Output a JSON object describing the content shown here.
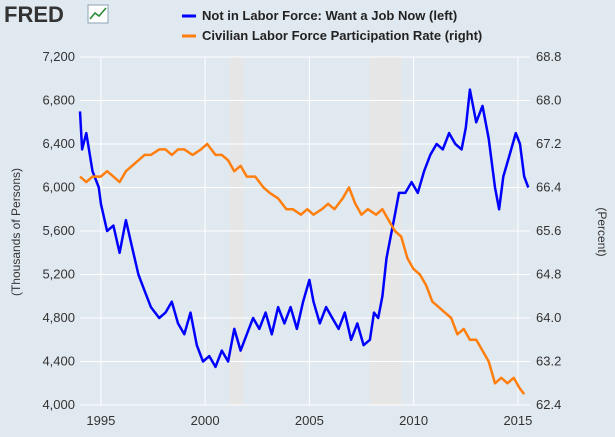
{
  "brand": {
    "logo": "FRED",
    "icon": "line-chart-icon"
  },
  "chart_data": {
    "type": "line",
    "title": "",
    "xlabel": "",
    "ylabel_left": "(Thousands of Persons)",
    "ylabel_right": "(Percent)",
    "x_ticks": [
      "1995",
      "2000",
      "2005",
      "2010",
      "2015"
    ],
    "y_left_ticks": [
      "4,000",
      "4,400",
      "4,800",
      "5,200",
      "5,600",
      "6,000",
      "6,400",
      "6,800",
      "7,200"
    ],
    "y_right_ticks": [
      "62.4",
      "63.2",
      "64.0",
      "64.8",
      "65.6",
      "66.4",
      "67.2",
      "68.0",
      "68.8"
    ],
    "ylim_left": [
      4000,
      7200
    ],
    "ylim_right": [
      62.4,
      68.8
    ],
    "xlim": [
      1994.0,
      2015.58
    ],
    "grid": true,
    "legend": "top",
    "recessions": [
      [
        2001.17,
        2001.83
      ],
      [
        2007.92,
        2009.42
      ]
    ],
    "colors": {
      "series_left": "#0000ff",
      "series_right": "#ff7f0e",
      "recession": "#e6e6e6",
      "grid": "#ffffff",
      "plot_bg": "#e1e9f0"
    },
    "series": [
      {
        "name": "Not in Labor Force: Want a Job Now (left)",
        "axis": "left",
        "points": [
          [
            1994.0,
            6700
          ],
          [
            1994.1,
            6350
          ],
          [
            1994.3,
            6500
          ],
          [
            1994.6,
            6150
          ],
          [
            1994.9,
            6000
          ],
          [
            1995.0,
            5850
          ],
          [
            1995.3,
            5600
          ],
          [
            1995.6,
            5650
          ],
          [
            1995.9,
            5400
          ],
          [
            1996.2,
            5700
          ],
          [
            1996.5,
            5450
          ],
          [
            1996.8,
            5200
          ],
          [
            1997.1,
            5050
          ],
          [
            1997.4,
            4900
          ],
          [
            1997.8,
            4800
          ],
          [
            1998.1,
            4850
          ],
          [
            1998.4,
            4950
          ],
          [
            1998.7,
            4750
          ],
          [
            1999.0,
            4650
          ],
          [
            1999.3,
            4850
          ],
          [
            1999.6,
            4550
          ],
          [
            1999.9,
            4400
          ],
          [
            2000.2,
            4450
          ],
          [
            2000.5,
            4350
          ],
          [
            2000.8,
            4500
          ],
          [
            2001.1,
            4400
          ],
          [
            2001.4,
            4700
          ],
          [
            2001.7,
            4500
          ],
          [
            2002.0,
            4650
          ],
          [
            2002.3,
            4800
          ],
          [
            2002.6,
            4700
          ],
          [
            2002.9,
            4850
          ],
          [
            2003.2,
            4650
          ],
          [
            2003.5,
            4900
          ],
          [
            2003.8,
            4750
          ],
          [
            2004.1,
            4900
          ],
          [
            2004.4,
            4700
          ],
          [
            2004.7,
            4950
          ],
          [
            2005.0,
            5150
          ],
          [
            2005.2,
            4950
          ],
          [
            2005.5,
            4750
          ],
          [
            2005.8,
            4900
          ],
          [
            2006.1,
            4800
          ],
          [
            2006.4,
            4700
          ],
          [
            2006.7,
            4850
          ],
          [
            2007.0,
            4600
          ],
          [
            2007.3,
            4750
          ],
          [
            2007.6,
            4550
          ],
          [
            2007.9,
            4600
          ],
          [
            2008.1,
            4850
          ],
          [
            2008.3,
            4800
          ],
          [
            2008.5,
            5000
          ],
          [
            2008.7,
            5350
          ],
          [
            2008.9,
            5550
          ],
          [
            2009.1,
            5750
          ],
          [
            2009.3,
            5950
          ],
          [
            2009.6,
            5950
          ],
          [
            2009.9,
            6050
          ],
          [
            2010.2,
            5950
          ],
          [
            2010.5,
            6150
          ],
          [
            2010.8,
            6300
          ],
          [
            2011.1,
            6400
          ],
          [
            2011.4,
            6350
          ],
          [
            2011.7,
            6500
          ],
          [
            2012.0,
            6400
          ],
          [
            2012.3,
            6350
          ],
          [
            2012.5,
            6550
          ],
          [
            2012.7,
            6900
          ],
          [
            2013.0,
            6600
          ],
          [
            2013.3,
            6750
          ],
          [
            2013.6,
            6450
          ],
          [
            2013.9,
            6000
          ],
          [
            2014.1,
            5800
          ],
          [
            2014.3,
            6100
          ],
          [
            2014.6,
            6300
          ],
          [
            2014.9,
            6500
          ],
          [
            2015.1,
            6400
          ],
          [
            2015.3,
            6100
          ],
          [
            2015.5,
            6000
          ]
        ]
      },
      {
        "name": "Civilian Labor Force Participation Rate (right)",
        "axis": "right",
        "points": [
          [
            1994.0,
            66.6
          ],
          [
            1994.3,
            66.5
          ],
          [
            1994.6,
            66.6
          ],
          [
            1995.0,
            66.6
          ],
          [
            1995.3,
            66.7
          ],
          [
            1995.6,
            66.6
          ],
          [
            1995.9,
            66.5
          ],
          [
            1996.2,
            66.7
          ],
          [
            1996.5,
            66.8
          ],
          [
            1996.8,
            66.9
          ],
          [
            1997.1,
            67.0
          ],
          [
            1997.4,
            67.0
          ],
          [
            1997.8,
            67.1
          ],
          [
            1998.1,
            67.1
          ],
          [
            1998.4,
            67.0
          ],
          [
            1998.7,
            67.1
          ],
          [
            1999.0,
            67.1
          ],
          [
            1999.4,
            67.0
          ],
          [
            1999.8,
            67.1
          ],
          [
            2000.1,
            67.2
          ],
          [
            2000.5,
            67.0
          ],
          [
            2000.8,
            67.0
          ],
          [
            2001.1,
            66.9
          ],
          [
            2001.4,
            66.7
          ],
          [
            2001.7,
            66.8
          ],
          [
            2002.0,
            66.6
          ],
          [
            2002.4,
            66.6
          ],
          [
            2002.8,
            66.4
          ],
          [
            2003.1,
            66.3
          ],
          [
            2003.5,
            66.2
          ],
          [
            2003.9,
            66.0
          ],
          [
            2004.2,
            66.0
          ],
          [
            2004.6,
            65.9
          ],
          [
            2004.9,
            66.0
          ],
          [
            2005.2,
            65.9
          ],
          [
            2005.6,
            66.0
          ],
          [
            2005.9,
            66.1
          ],
          [
            2006.2,
            66.0
          ],
          [
            2006.6,
            66.2
          ],
          [
            2006.9,
            66.4
          ],
          [
            2007.2,
            66.1
          ],
          [
            2007.5,
            65.9
          ],
          [
            2007.8,
            66.0
          ],
          [
            2008.2,
            65.9
          ],
          [
            2008.5,
            66.0
          ],
          [
            2008.8,
            65.8
          ],
          [
            2009.1,
            65.6
          ],
          [
            2009.4,
            65.5
          ],
          [
            2009.7,
            65.1
          ],
          [
            2010.0,
            64.9
          ],
          [
            2010.3,
            64.8
          ],
          [
            2010.6,
            64.6
          ],
          [
            2010.9,
            64.3
          ],
          [
            2011.2,
            64.2
          ],
          [
            2011.5,
            64.1
          ],
          [
            2011.8,
            64.0
          ],
          [
            2012.1,
            63.7
          ],
          [
            2012.4,
            63.8
          ],
          [
            2012.7,
            63.6
          ],
          [
            2013.0,
            63.6
          ],
          [
            2013.3,
            63.4
          ],
          [
            2013.6,
            63.2
          ],
          [
            2013.9,
            62.8
          ],
          [
            2014.2,
            62.9
          ],
          [
            2014.5,
            62.8
          ],
          [
            2014.8,
            62.9
          ],
          [
            2015.1,
            62.7
          ],
          [
            2015.3,
            62.6
          ]
        ]
      }
    ]
  }
}
